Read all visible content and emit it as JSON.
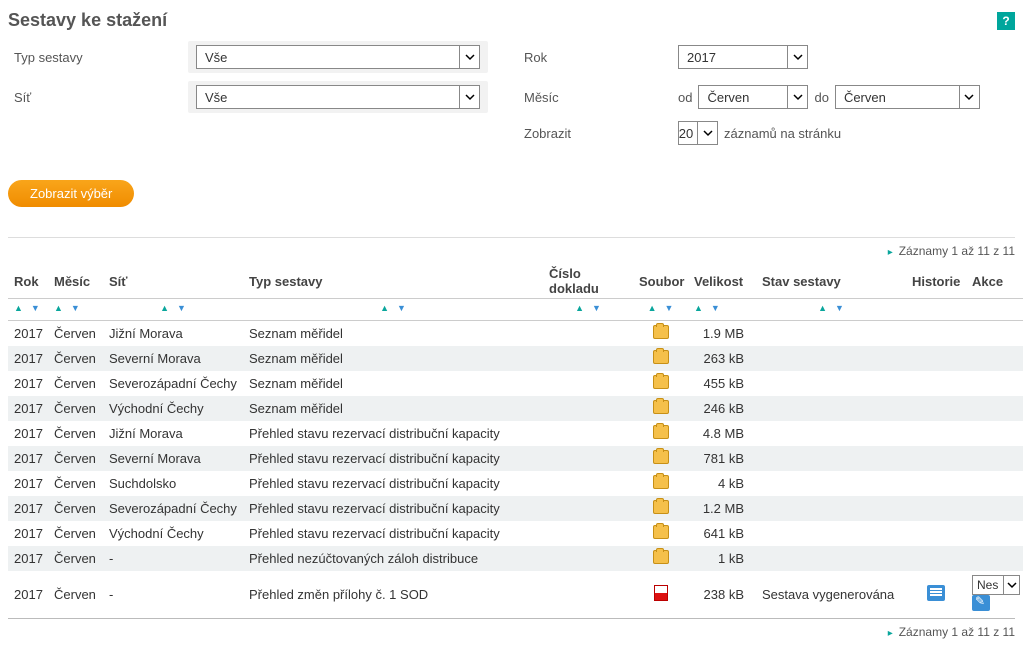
{
  "title": "Sestavy ke stažení",
  "filters": {
    "typ_label": "Typ sestavy",
    "typ_value": "Vše",
    "sit_label": "Síť",
    "sit_value": "Vše",
    "rok_label": "Rok",
    "rok_value": "2017",
    "mesic_label": "Měsíc",
    "mesic_od_label": "od",
    "mesic_od_value": "Červen",
    "mesic_do_label": "do",
    "mesic_do_value": "Červen",
    "zobrazit_label": "Zobrazit",
    "zobrazit_value": "20",
    "zobrazit_suffix": "záznamů na stránku"
  },
  "button_submit": "Zobrazit výběr",
  "records_info": "Záznamy 1 až 11 z 11",
  "columns": {
    "rok": "Rok",
    "mesic": "Měsíc",
    "sit": "Síť",
    "typ": "Typ sestavy",
    "doklad": "Číslo dokladu",
    "soubor": "Soubor",
    "velikost": "Velikost",
    "stav": "Stav sestavy",
    "historie": "Historie",
    "akce": "Akce"
  },
  "rows": [
    {
      "rok": "2017",
      "mesic": "Červen",
      "sit": "Jižní Morava",
      "typ": "Seznam měřidel",
      "doklad": "",
      "icon": "folder",
      "size": "1.9 MB",
      "stav": "",
      "hist": false,
      "akce": ""
    },
    {
      "rok": "2017",
      "mesic": "Červen",
      "sit": "Severní Morava",
      "typ": "Seznam měřidel",
      "doklad": "",
      "icon": "folder",
      "size": "263 kB",
      "stav": "",
      "hist": false,
      "akce": ""
    },
    {
      "rok": "2017",
      "mesic": "Červen",
      "sit": "Severozápadní Čechy",
      "typ": "Seznam měřidel",
      "doklad": "",
      "icon": "folder",
      "size": "455 kB",
      "stav": "",
      "hist": false,
      "akce": ""
    },
    {
      "rok": "2017",
      "mesic": "Červen",
      "sit": "Východní Čechy",
      "typ": "Seznam měřidel",
      "doklad": "",
      "icon": "folder",
      "size": "246 kB",
      "stav": "",
      "hist": false,
      "akce": ""
    },
    {
      "rok": "2017",
      "mesic": "Červen",
      "sit": "Jižní Morava",
      "typ": "Přehled stavu rezervací distribuční kapacity",
      "doklad": "",
      "icon": "folder",
      "size": "4.8 MB",
      "stav": "",
      "hist": false,
      "akce": ""
    },
    {
      "rok": "2017",
      "mesic": "Červen",
      "sit": "Severní Morava",
      "typ": "Přehled stavu rezervací distribuční kapacity",
      "doklad": "",
      "icon": "folder",
      "size": "781 kB",
      "stav": "",
      "hist": false,
      "akce": ""
    },
    {
      "rok": "2017",
      "mesic": "Červen",
      "sit": "Suchdolsko",
      "typ": "Přehled stavu rezervací distribuční kapacity",
      "doklad": "",
      "icon": "folder",
      "size": "4 kB",
      "stav": "",
      "hist": false,
      "akce": ""
    },
    {
      "rok": "2017",
      "mesic": "Červen",
      "sit": "Severozápadní Čechy",
      "typ": "Přehled stavu rezervací distribuční kapacity",
      "doklad": "",
      "icon": "folder",
      "size": "1.2 MB",
      "stav": "",
      "hist": false,
      "akce": ""
    },
    {
      "rok": "2017",
      "mesic": "Červen",
      "sit": "Východní Čechy",
      "typ": "Přehled stavu rezervací distribuční kapacity",
      "doklad": "",
      "icon": "folder",
      "size": "641 kB",
      "stav": "",
      "hist": false,
      "akce": ""
    },
    {
      "rok": "2017",
      "mesic": "Červen",
      "sit": "-",
      "typ": "Přehled nezúčtovaných záloh distribuce",
      "doklad": "",
      "icon": "folder",
      "size": "1 kB",
      "stav": "",
      "hist": false,
      "akce": ""
    },
    {
      "rok": "2017",
      "mesic": "Červen",
      "sit": "-",
      "typ": "Přehled změn přílohy č. 1 SOD",
      "doklad": "",
      "icon": "pdf",
      "size": "238 kB",
      "stav": "Sestava vygenerována",
      "hist": true,
      "akce": "Nes"
    }
  ],
  "colors": {
    "accent": "#00a69c",
    "button": "#f08c00",
    "link": "#3a8fd6",
    "row_alt": "#eef1f2"
  }
}
